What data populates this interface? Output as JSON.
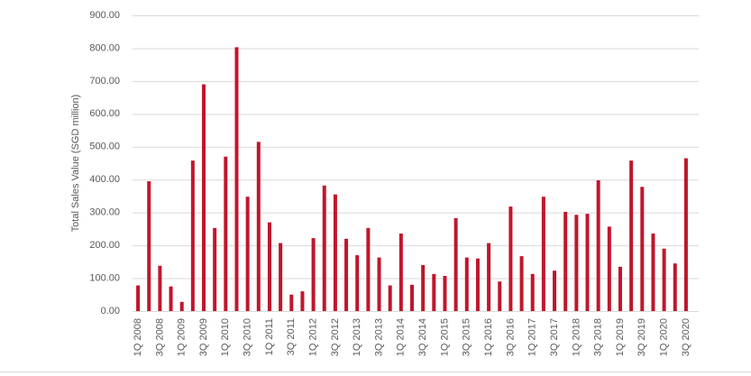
{
  "chart_data": {
    "type": "bar",
    "y_label": "Total Sales Value (SGD million)",
    "categories": [
      "1Q 2008",
      null,
      "3Q 2008",
      null,
      "1Q 2009",
      null,
      "3Q 2009",
      null,
      "1Q 2010",
      null,
      "3Q 2010",
      null,
      "1Q 2011",
      null,
      "3Q 2011",
      null,
      "1Q 2012",
      null,
      "3Q 2012",
      null,
      "1Q 2013",
      null,
      "3Q 2013",
      null,
      "1Q 2014",
      null,
      "3Q 2014",
      null,
      "1Q 2015",
      null,
      "3Q 2015",
      null,
      "1Q 2016",
      null,
      "3Q 2016",
      null,
      "1Q 2017",
      null,
      "3Q 2017",
      null,
      "1Q 2018",
      null,
      "3Q 2018",
      null,
      "1Q 2019",
      null,
      "3Q 2019",
      null,
      "1Q 2020",
      null,
      "3Q 2020"
    ],
    "values": [
      78,
      395,
      138,
      75,
      28,
      458,
      690,
      253,
      470,
      803,
      348,
      515,
      270,
      207,
      50,
      60,
      222,
      382,
      355,
      220,
      170,
      253,
      163,
      78,
      236,
      80,
      140,
      113,
      107,
      283,
      163,
      160,
      207,
      90,
      318,
      167,
      113,
      348,
      123,
      302,
      293,
      296,
      398,
      257,
      135,
      458,
      378,
      236,
      190,
      145,
      465
    ],
    "color": "#c0162c",
    "ylim": [
      0,
      900
    ],
    "yticks": [
      {
        "value": 0,
        "label": "0.00"
      },
      {
        "value": 100,
        "label": "100.00"
      },
      {
        "value": 200,
        "label": "200.00"
      },
      {
        "value": 300,
        "label": "300.00"
      },
      {
        "value": 400,
        "label": "400.00"
      },
      {
        "value": 500,
        "label": "500.00"
      },
      {
        "value": 600,
        "label": "600.00"
      },
      {
        "value": 700,
        "label": "700.00"
      },
      {
        "value": 800,
        "label": "800.00"
      },
      {
        "value": 900,
        "label": "900.00"
      }
    ],
    "grid": true
  }
}
